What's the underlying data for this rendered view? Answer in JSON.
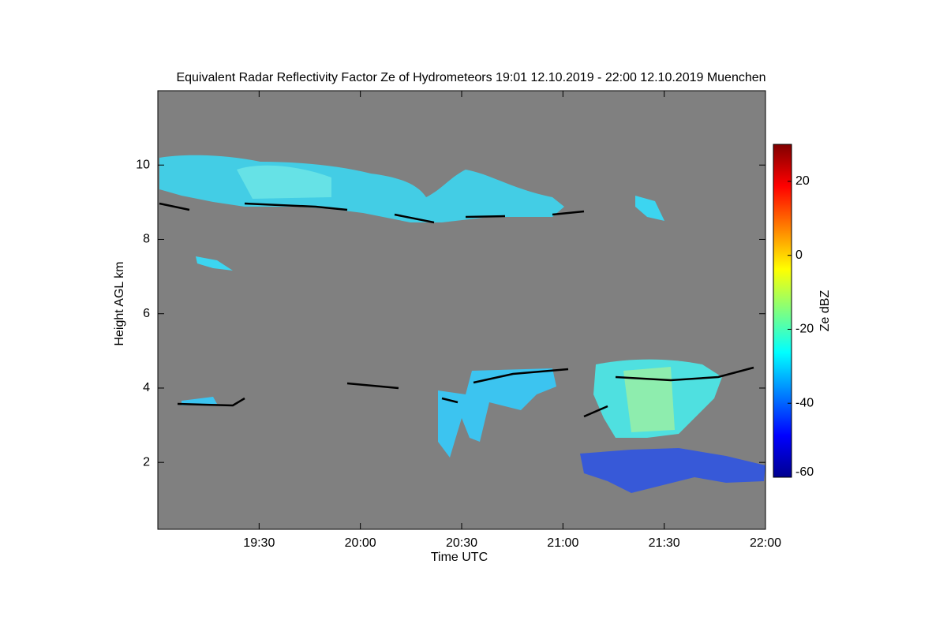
{
  "chart_data": {
    "type": "heatmap",
    "title": "Equivalent Radar Reflectivity Factor Ze of Hydrometeors   19:01 12.10.2019 - 22:00 12.10.2019 Muenchen",
    "x_label": "Time UTC",
    "y_label": "Height AGL km",
    "xlim": [
      1140,
      1320
    ],
    "xticks": [
      {
        "value": 1170,
        "label": "19:30"
      },
      {
        "value": 1200,
        "label": "20:00"
      },
      {
        "value": 1230,
        "label": "20:30"
      },
      {
        "value": 1260,
        "label": "21:00"
      },
      {
        "value": 1290,
        "label": "21:30"
      },
      {
        "value": 1320,
        "label": "22:00"
      }
    ],
    "ylim": [
      0.2,
      12
    ],
    "yticks": [
      2,
      4,
      6,
      8,
      10
    ],
    "colorbar": {
      "label": "Ze dBZ",
      "lim": [
        -60,
        30
      ],
      "ticks": [
        -60,
        -40,
        -20,
        0,
        20
      ],
      "colormap": "jet"
    },
    "background": "#808080"
  }
}
